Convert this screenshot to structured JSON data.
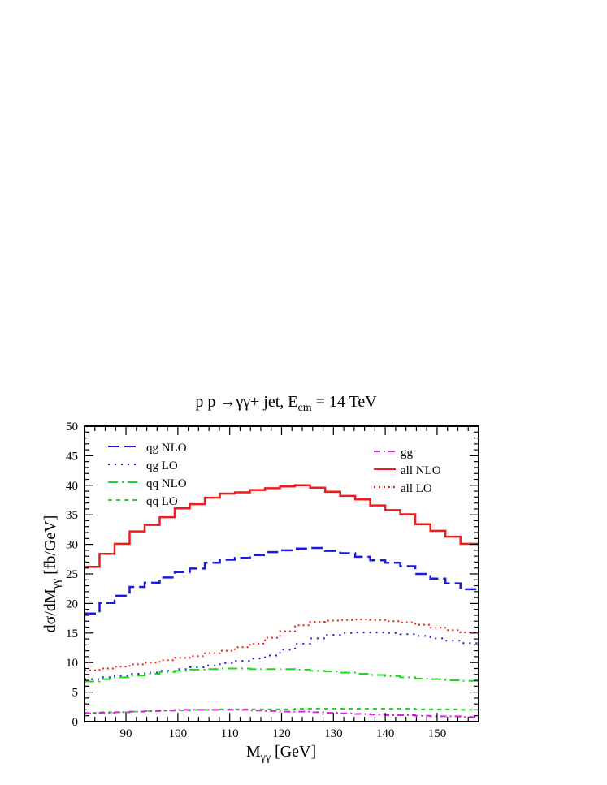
{
  "chart_data": {
    "type": "line",
    "title": "p p →γγ+ jet, E_cm = 14 TeV",
    "title_parts": {
      "main": "p p →γγ+ jet, E",
      "sub": "cm",
      "rest": " = 14 TeV"
    },
    "xlabel_parts": {
      "main": "M",
      "sub": "γγ",
      "rest": " [GeV]"
    },
    "ylabel_parts": {
      "main": "dσ/dM",
      "sub": "γγ",
      "rest": " [fb/GeV]"
    },
    "xlim": [
      82,
      158
    ],
    "ylim": [
      0,
      50
    ],
    "x_ticks": [
      "90",
      "100",
      "110",
      "120",
      "130",
      "140",
      "150"
    ],
    "y_ticks": [
      "0",
      "5",
      "10",
      "15",
      "20",
      "25",
      "30",
      "35",
      "40",
      "45",
      "50"
    ],
    "grid": false,
    "legend_placement": "top (two groups: upper-left and upper-right)",
    "bin_edges": [
      82,
      84.9,
      87.8,
      90.7,
      93.6,
      96.5,
      99.4,
      102.3,
      105.2,
      108.1,
      111,
      113.9,
      116.8,
      119.7,
      122.6,
      125.5,
      128.4,
      131.3,
      134.2,
      137.1,
      140,
      142.9,
      145.8,
      148.7,
      151.6,
      154.5,
      157.4,
      158
    ],
    "series": [
      {
        "name": "qg NLO",
        "label_main": "qg NLO",
        "color": "#1a1adf",
        "dash": "14,6",
        "width": 2.5,
        "legend_group": "left",
        "values": [
          18.3,
          20.1,
          21.3,
          22.8,
          23.5,
          24.4,
          25.3,
          25.9,
          26.9,
          27.4,
          27.7,
          28.2,
          28.7,
          29.0,
          29.3,
          29.4,
          28.9,
          28.5,
          27.9,
          27.3,
          26.9,
          26.3,
          25.0,
          24.2,
          23.4,
          22.4,
          22.4
        ]
      },
      {
        "name": "qg LO",
        "label_main": "qg LO",
        "color": "#1a1adf",
        "dash": "2,6",
        "width": 2,
        "legend_group": "left",
        "values": [
          7.2,
          7.5,
          7.8,
          8.1,
          8.3,
          8.6,
          8.9,
          9.2,
          9.5,
          9.9,
          10.3,
          10.7,
          11.2,
          12.2,
          13.2,
          14.1,
          14.7,
          15.0,
          15.1,
          15.1,
          15.0,
          14.8,
          14.5,
          14.1,
          13.7,
          13.3,
          13.3
        ]
      },
      {
        "name": "qq NLO",
        "label_main": "qq NLO",
        "color": "#1ed81e",
        "dash": "12,5,2,5",
        "width": 2,
        "legend_group": "left",
        "values": [
          6.8,
          7.2,
          7.5,
          7.8,
          8.1,
          8.4,
          8.6,
          8.8,
          8.9,
          9.0,
          9.0,
          8.9,
          8.9,
          8.9,
          8.8,
          8.6,
          8.5,
          8.3,
          8.1,
          7.9,
          7.7,
          7.5,
          7.3,
          7.2,
          7.0,
          6.9,
          6.9
        ]
      },
      {
        "name": "qq LO",
        "label_main": "qq LO",
        "color": "#1ed81e",
        "dash": "5,5",
        "width": 2,
        "legend_group": "left",
        "values": [
          1.5,
          1.6,
          1.6,
          1.7,
          1.8,
          1.9,
          1.9,
          2.0,
          2.0,
          2.1,
          2.1,
          2.1,
          2.1,
          2.1,
          2.2,
          2.2,
          2.2,
          2.2,
          2.2,
          2.2,
          2.2,
          2.2,
          2.1,
          2.1,
          2.1,
          2.0,
          2.0
        ]
      },
      {
        "name": "gg",
        "label_main": "gg",
        "color": "#e020e0",
        "dash": "8,4,2,4",
        "width": 2,
        "legend_group": "right",
        "values": [
          1.4,
          1.5,
          1.6,
          1.7,
          1.8,
          1.9,
          2.0,
          2.0,
          2.0,
          2.0,
          2.0,
          1.9,
          1.8,
          1.7,
          1.7,
          1.6,
          1.5,
          1.4,
          1.3,
          1.2,
          1.1,
          1.1,
          1.0,
          0.9,
          0.9,
          0.8,
          0.8
        ]
      },
      {
        "name": "all NLO",
        "label_main": "all NLO",
        "color": "#ee1c1c",
        "dash": "",
        "width": 2.5,
        "legend_group": "right",
        "values": [
          26.2,
          28.4,
          30.1,
          32.2,
          33.3,
          34.6,
          36.1,
          36.8,
          37.9,
          38.6,
          38.8,
          39.2,
          39.5,
          39.8,
          40.0,
          39.6,
          38.9,
          38.2,
          37.6,
          36.6,
          35.8,
          35.1,
          33.4,
          32.3,
          31.3,
          30.1,
          30.1
        ]
      },
      {
        "name": "all LO",
        "label_main": "all LO",
        "color": "#ee1c1c",
        "dash": "2,4",
        "width": 2,
        "legend_group": "right",
        "values": [
          8.7,
          9.0,
          9.3,
          9.7,
          10.0,
          10.4,
          10.8,
          11.1,
          11.6,
          12.0,
          12.6,
          13.2,
          14.2,
          15.3,
          16.3,
          16.9,
          17.1,
          17.2,
          17.3,
          17.2,
          17.0,
          16.8,
          16.4,
          15.9,
          15.5,
          15.1,
          15.1
        ]
      }
    ]
  }
}
